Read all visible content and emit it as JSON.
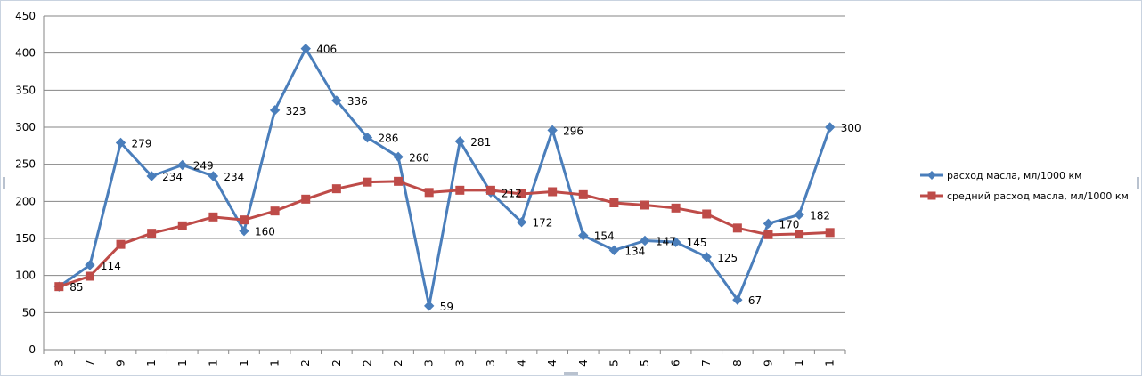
{
  "chart_data": {
    "type": "line",
    "categories": [
      "3",
      "7",
      "9",
      "1",
      "1",
      "1",
      "1",
      "1",
      "2",
      "2",
      "2",
      "2",
      "3",
      "3",
      "3",
      "4",
      "4",
      "4",
      "5",
      "5",
      "6",
      "7",
      "8",
      "9",
      "1",
      "1"
    ],
    "ylim": [
      0,
      450
    ],
    "yticks": [
      0,
      50,
      100,
      150,
      200,
      250,
      300,
      350,
      400,
      450
    ],
    "grid": "horizontal",
    "legend_position": "right",
    "series": [
      {
        "name": "расход масла, мл/1000 км",
        "color": "#4A7EBB",
        "marker": "diamond",
        "values": [
          85,
          114,
          279,
          234,
          249,
          234,
          160,
          323,
          406,
          336,
          286,
          260,
          59,
          281,
          212,
          172,
          296,
          154,
          134,
          147,
          145,
          125,
          67,
          170,
          182,
          300
        ],
        "labels": [
          "85",
          "114",
          "279",
          "234",
          "249",
          "234",
          "160",
          "323",
          "406",
          "336",
          "286",
          "260",
          "59",
          "281",
          "212",
          "172",
          "296",
          "154",
          "134",
          "147",
          "145",
          "125",
          "67",
          "170",
          "182",
          "300"
        ]
      },
      {
        "name": "средний расход масла, мл/1000 км",
        "color": "#BE4B48",
        "marker": "square",
        "values": [
          85,
          99,
          142,
          157,
          167,
          179,
          175,
          187,
          203,
          217,
          226,
          227,
          212,
          215,
          215,
          210,
          213,
          209,
          198,
          195,
          191,
          183,
          164,
          155,
          156,
          158
        ]
      }
    ]
  }
}
